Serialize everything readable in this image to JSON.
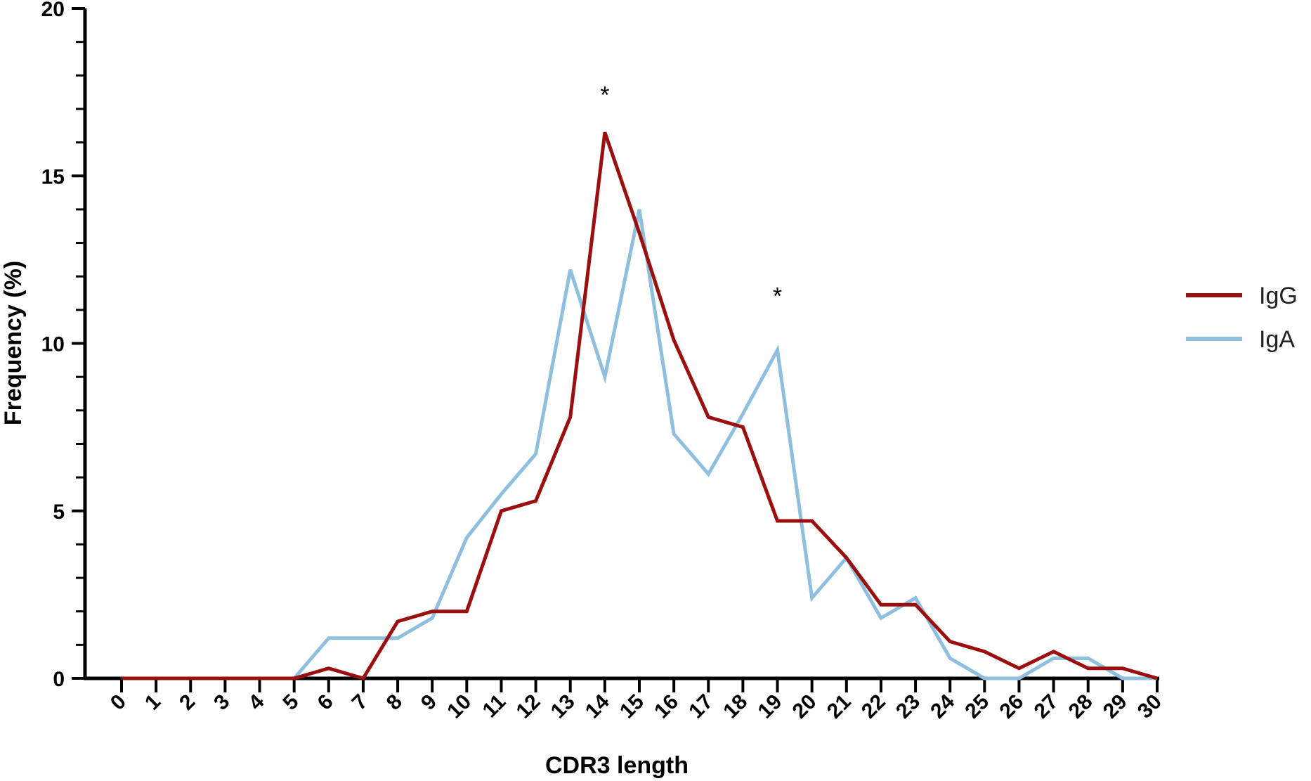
{
  "chart_data": {
    "type": "line",
    "xlabel": "CDR3 length",
    "ylabel": "Frequency (%)",
    "xlim": [
      0,
      30
    ],
    "ylim": [
      0,
      20
    ],
    "x": [
      0,
      1,
      2,
      3,
      4,
      5,
      6,
      7,
      8,
      9,
      10,
      11,
      12,
      13,
      14,
      15,
      16,
      17,
      18,
      19,
      20,
      21,
      22,
      23,
      24,
      25,
      26,
      27,
      28,
      29,
      30
    ],
    "x_ticks": [
      "0",
      "1",
      "2",
      "3",
      "4",
      "5",
      "6",
      "7",
      "8",
      "9",
      "10",
      "11",
      "12",
      "13",
      "14",
      "15",
      "16",
      "17",
      "18",
      "19",
      "20",
      "21",
      "22",
      "23",
      "24",
      "25",
      "26",
      "27",
      "28",
      "29",
      "30"
    ],
    "y_ticks": [
      "0",
      "5",
      "10",
      "15",
      "20"
    ],
    "series": [
      {
        "name": "IgG",
        "color": "#9b0f0f",
        "values": [
          0,
          0,
          0,
          0,
          0,
          0,
          0.3,
          0,
          1.7,
          2.0,
          2.0,
          5.0,
          5.3,
          7.8,
          16.3,
          13.3,
          10.1,
          7.8,
          7.5,
          4.7,
          4.7,
          3.6,
          2.2,
          2.2,
          1.1,
          0.8,
          0.3,
          0.8,
          0.3,
          0.3,
          0
        ]
      },
      {
        "name": "IgA",
        "color": "#8fbfdf",
        "values": [
          0,
          0,
          0,
          0,
          0,
          0,
          1.2,
          1.2,
          1.2,
          1.8,
          4.2,
          5.5,
          6.7,
          12.2,
          9.0,
          14.0,
          7.3,
          6.1,
          7.9,
          9.8,
          2.4,
          3.6,
          1.8,
          2.4,
          0.6,
          0,
          0,
          0.6,
          0.6,
          0,
          0
        ]
      }
    ],
    "annotations": [
      {
        "text": "*",
        "x": 14,
        "y": 17.6
      },
      {
        "text": "*",
        "x": 19,
        "y": 11.6
      }
    ],
    "legend_position": "right",
    "grid": false
  }
}
